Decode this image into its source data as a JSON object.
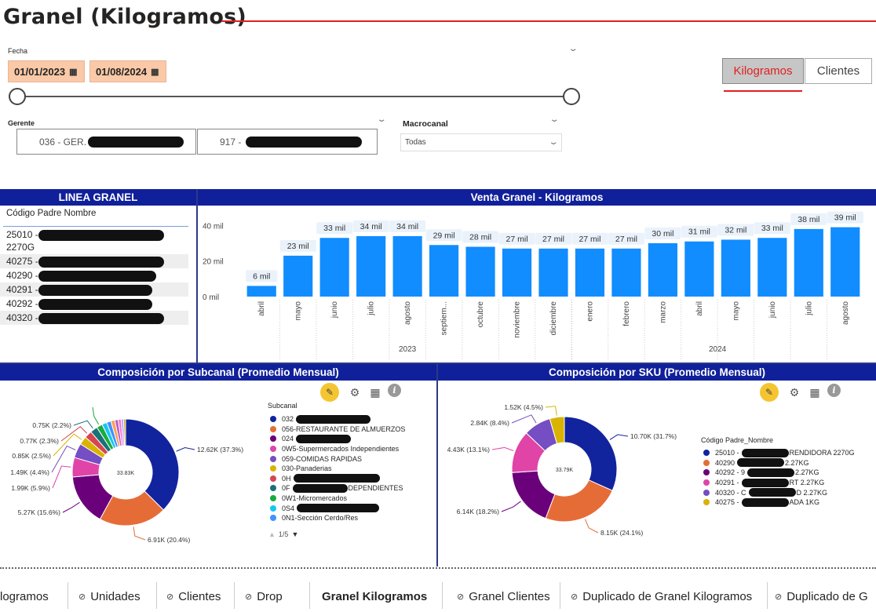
{
  "page": {
    "title": "Granel (Kilogramos)"
  },
  "date_filter": {
    "label": "Fecha",
    "start": "01/01/2023",
    "end": "01/08/2024"
  },
  "toggles": {
    "active": "Kilogramos",
    "inactive": "Clientes",
    "accent": "#e02020"
  },
  "gerente": {
    "label": "Gerente",
    "option1": "036 - GER.",
    "option2": "917 -"
  },
  "macrocanal": {
    "label": "Macrocanal",
    "value": "Todas"
  },
  "linea": {
    "header": "LINEA GRANEL",
    "column": "Código Padre Nombre",
    "rows": [
      {
        "code": "25010 -",
        "extra": "2270G"
      },
      {
        "code": "40275 -"
      },
      {
        "code": "40290 -"
      },
      {
        "code": "40291 -"
      },
      {
        "code": "40292 -"
      },
      {
        "code": "40320 -"
      }
    ]
  },
  "venta": {
    "header": "Venta Granel - Kilogramos"
  },
  "chart_data": {
    "type": "bar",
    "categories": [
      "abril",
      "mayo",
      "junio",
      "julio",
      "agosto",
      "septiem...",
      "octubre",
      "noviembre",
      "diciembre",
      "enero",
      "febrero",
      "marzo",
      "abril",
      "mayo",
      "junio",
      "julio",
      "agosto"
    ],
    "values": [
      6,
      23,
      33,
      34,
      34,
      29,
      28,
      27,
      27,
      27,
      27,
      30,
      31,
      32,
      33,
      38,
      39
    ],
    "data_labels": [
      "6 mil",
      "23 mil",
      "33 mil",
      "34 mil",
      "34 mil",
      "29 mil",
      "28 mil",
      "27 mil",
      "27 mil",
      "27 mil",
      "27 mil",
      "30 mil",
      "31 mil",
      "32 mil",
      "33 mil",
      "38 mil",
      "39 mil"
    ],
    "years": [
      {
        "label": "2023",
        "count": 9
      },
      {
        "label": "2024",
        "count": 8
      }
    ],
    "yticks": [
      {
        "v": 0,
        "label": "0 mil"
      },
      {
        "v": 20,
        "label": "20 mil"
      },
      {
        "v": 40,
        "label": "40 mil"
      }
    ],
    "ylim": [
      0,
      45
    ],
    "color": "#118dff"
  },
  "subcanal": {
    "header": "Composición por Subcanal (Promedio Mensual)",
    "center": "33.83K",
    "slices": [
      {
        "value": 12.62,
        "label": "12.62K (37.3%)",
        "color": "#12239e"
      },
      {
        "value": 6.91,
        "label": "6.91K (20.4%)",
        "color": "#e66c37"
      },
      {
        "value": 5.27,
        "label": "5.27K (15.6%)",
        "color": "#6b007b"
      },
      {
        "value": 1.99,
        "label": "1.99K (5.9%)",
        "color": "#e044a7"
      },
      {
        "value": 1.49,
        "label": "1.49K (4.4%)",
        "color": "#744ec2"
      },
      {
        "value": 0.85,
        "label": "0.85K (2.5%)",
        "color": "#d9b300"
      },
      {
        "value": 0.77,
        "label": "0.77K (2.3%)",
        "color": "#d64550"
      },
      {
        "value": 0.75,
        "label": "0.75K (2.2%)",
        "color": "#197278"
      },
      {
        "value": 0.6,
        "label": "",
        "color": "#1aab40"
      },
      {
        "value": 0.5,
        "label": "",
        "color": "#15c6f4"
      },
      {
        "value": 0.45,
        "label": "",
        "color": "#4092ff"
      },
      {
        "value": 0.4,
        "label": "",
        "color": "#ffa058"
      },
      {
        "value": 0.35,
        "label": "",
        "color": "#be5dc9"
      },
      {
        "value": 0.3,
        "label": "",
        "color": "#f472d0"
      },
      {
        "value": 0.25,
        "label": "",
        "color": "#b5a1ff"
      },
      {
        "value": 0.2,
        "label": "",
        "color": "#c4a200"
      }
    ],
    "legend_title": "Subcanal",
    "legend": [
      {
        "text": "032",
        "color": "#12239e",
        "redact": 95
      },
      {
        "text": "056-RESTAURANTE DE ALMUERZOS",
        "color": "#e66c37"
      },
      {
        "text": "024",
        "color": "#6b007b",
        "redact": 70
      },
      {
        "text": "0W5-Supermercados Independientes",
        "color": "#e044a7"
      },
      {
        "text": "059-COMIDAS RAPIDAS",
        "color": "#744ec2"
      },
      {
        "text": "030-Panaderias",
        "color": "#d9b300"
      },
      {
        "text": "0H",
        "color": "#d64550",
        "redact": 110
      },
      {
        "text": "0F",
        "color": "#197278",
        "redact": 70,
        "suffix": "DEPENDIENTES"
      },
      {
        "text": "0W1-Micromercados",
        "color": "#1aab40"
      },
      {
        "text": "0S4",
        "color": "#15c6f4",
        "redact": 105
      },
      {
        "text": "0N1-Sección Cerdo/Res",
        "color": "#4092ff"
      }
    ],
    "pager": "1/5"
  },
  "sku": {
    "header": "Composición por SKU (Promedio Mensual)",
    "center": "33.79K",
    "slices": [
      {
        "value": 10.7,
        "label": "10.70K (31.7%)",
        "color": "#12239e"
      },
      {
        "value": 8.15,
        "label": "8.15K (24.1%)",
        "color": "#e66c37"
      },
      {
        "value": 6.14,
        "label": "6.14K (18.2%)",
        "color": "#6b007b"
      },
      {
        "value": 4.43,
        "label": "4.43K (13.1%)",
        "color": "#e044a7"
      },
      {
        "value": 2.84,
        "label": "2.84K (8.4%)",
        "color": "#744ec2"
      },
      {
        "value": 1.52,
        "label": "1.52K (4.5%)",
        "color": "#d9b300"
      }
    ],
    "legend_title": "Código Padre_Nombre",
    "legend": [
      {
        "text": "25010 -",
        "color": "#12239e",
        "suffix": "RENDIDORA 2270G"
      },
      {
        "text": "40290",
        "color": "#e66c37",
        "suffix": "2.27KG"
      },
      {
        "text": "40292 - 9",
        "color": "#6b007b",
        "suffix": "2.27KG"
      },
      {
        "text": "40291 -",
        "color": "#e044a7",
        "suffix": "RT 2.27KG"
      },
      {
        "text": "40320 - C",
        "color": "#744ec2",
        "suffix": "D 2.27KG"
      },
      {
        "text": "40275 -",
        "color": "#d9b300",
        "suffix": "ADA 1KG"
      }
    ]
  },
  "tabs": [
    {
      "label": "logramos",
      "hidden": false
    },
    {
      "label": "Unidades",
      "hidden": true
    },
    {
      "label": "Clientes",
      "hidden": true
    },
    {
      "label": "Drop",
      "hidden": true
    },
    {
      "label": "Granel Kilogramos",
      "hidden": false
    },
    {
      "label": "Granel Clientes",
      "hidden": true
    },
    {
      "label": "Duplicado de Granel Kilogramos",
      "hidden": true
    },
    {
      "label": "Duplicado de G",
      "hidden": true
    }
  ]
}
